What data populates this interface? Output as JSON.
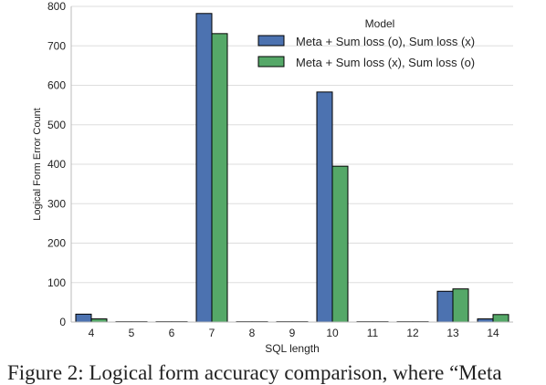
{
  "chart_data": {
    "type": "bar",
    "xlabel": "SQL length",
    "ylabel": "Logical Form Error Count",
    "ylim": [
      0,
      800
    ],
    "yticks": [
      0,
      100,
      200,
      300,
      400,
      500,
      600,
      700,
      800
    ],
    "grid": true,
    "categories": [
      "4",
      "5",
      "6",
      "7",
      "8",
      "9",
      "10",
      "11",
      "12",
      "13",
      "14"
    ],
    "legend": {
      "title": "Model",
      "placement": "top-right"
    },
    "series": [
      {
        "name": "Meta + Sum loss (o), Sum loss (x)",
        "color": "#4c72b0",
        "values": [
          20,
          1,
          1,
          782,
          1,
          1,
          583,
          1,
          1,
          78,
          8
        ]
      },
      {
        "name": "Meta + Sum loss (x), Sum loss (o)",
        "color": "#55a868",
        "values": [
          8,
          1,
          1,
          731,
          1,
          1,
          395,
          1,
          1,
          84,
          19
        ]
      }
    ]
  },
  "caption": "Figure 2: Logical form accuracy comparison, where “Meta"
}
